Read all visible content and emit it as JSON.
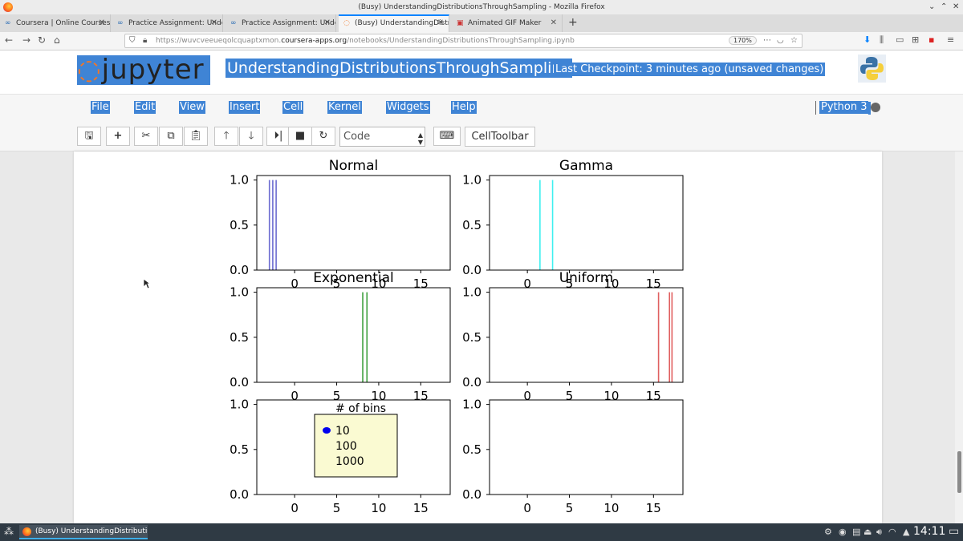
{
  "window": {
    "title": "(Busy) UnderstandingDistributionsThroughSampling - Mozilla Firefox"
  },
  "tabs": [
    {
      "label": "Coursera | Online Courses"
    },
    {
      "label": "Practice Assignment: Understanding"
    },
    {
      "label": "Practice Assignment: Understanding"
    },
    {
      "label": "(Busy) UnderstandingDistributions"
    },
    {
      "label": "Animated GIF Maker"
    }
  ],
  "url": {
    "prefix": "https://wuvcveeueqolcquaptxmon.",
    "domain": "coursera-apps.org",
    "path": "/notebooks/UnderstandingDistributionsThroughSampling.ipynb",
    "zoom": "170%"
  },
  "jupyter": {
    "logo_text": "jupyter",
    "notebook_name": "UnderstandingDistributionsThroughSampling",
    "checkpoint": "Last Checkpoint: 3 minutes ago (unsaved changes)",
    "menu": [
      "File",
      "Edit",
      "View",
      "Insert",
      "Cell",
      "Kernel",
      "Widgets",
      "Help"
    ],
    "kernel": "Python 3",
    "cell_type": "Code",
    "celltoolbar": "CellToolbar"
  },
  "chart_data": [
    {
      "type": "histogram",
      "title": "Normal",
      "color": "#6b6bd0",
      "bar_x": [
        -3.0,
        -2.6,
        -2.2
      ],
      "yticks": [
        0.0,
        0.5,
        1.0
      ],
      "xticks": [
        0,
        5,
        10,
        15
      ],
      "xlim": [
        -4.5,
        18.5
      ],
      "ylim": [
        0,
        1.05
      ],
      "xticks_visible": true
    },
    {
      "type": "histogram",
      "title": "Gamma",
      "color": "#3ff0f0",
      "bar_x": [
        1.5,
        3.0
      ],
      "yticks": [
        0.0,
        0.5,
        1.0
      ],
      "xticks": [
        0,
        5,
        10,
        15
      ],
      "xlim": [
        -4.5,
        18.5
      ],
      "ylim": [
        0,
        1.05
      ],
      "xticks_visible": true
    },
    {
      "type": "histogram",
      "title": "Exponential",
      "color": "#3fa03f",
      "bar_x": [
        8.1,
        8.6
      ],
      "yticks": [
        0.0,
        0.5,
        1.0
      ],
      "xticks": [
        0,
        5,
        10,
        15
      ],
      "xlim": [
        -4.5,
        18.5
      ],
      "ylim": [
        0,
        1.05
      ],
      "xticks_visible": true
    },
    {
      "type": "histogram",
      "title": "Uniform",
      "color": "#e06060",
      "bar_x": [
        15.6,
        16.9,
        17.2
      ],
      "yticks": [
        0.0,
        0.5,
        1.0
      ],
      "xticks": [
        0,
        5,
        10,
        15
      ],
      "xlim": [
        -4.5,
        18.5
      ],
      "ylim": [
        0,
        1.05
      ],
      "xticks_visible": true
    },
    {
      "type": "widget",
      "title": "",
      "yticks": [
        0.0,
        0.5,
        1.0
      ],
      "xticks": [
        0,
        5,
        10,
        15
      ],
      "xlim": [
        -4.5,
        18.5
      ],
      "ylim": [
        0,
        1.05
      ],
      "xticks_visible": true,
      "radio": {
        "title": "# of bins",
        "options": [
          "10",
          "100",
          "1000"
        ],
        "selected": 0,
        "dot_color": "#0000ee",
        "bg": "#fafad2"
      }
    },
    {
      "type": "empty",
      "title": "",
      "yticks": [
        0.0,
        0.5,
        1.0
      ],
      "xticks": [
        0,
        5,
        10,
        15
      ],
      "xlim": [
        -4.5,
        18.5
      ],
      "ylim": [
        0,
        1.05
      ],
      "xticks_visible": true
    }
  ],
  "taskbar": {
    "task": "(Busy) UnderstandingDistribution...",
    "clock": "14:11"
  }
}
